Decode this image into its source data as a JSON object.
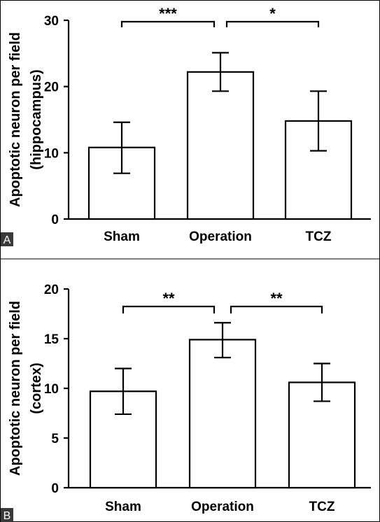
{
  "panels": [
    {
      "letter": "A",
      "chart_data": {
        "type": "bar",
        "ylabel_lines": [
          "Apoptotic neuron per field",
          "(hippocampus)"
        ],
        "categories": [
          "Sham",
          "Operation",
          "TCZ"
        ],
        "values": [
          10.8,
          22.2,
          14.8
        ],
        "error_low": [
          6.9,
          19.3,
          10.3
        ],
        "error_high": [
          14.6,
          25.1,
          19.3
        ],
        "ylim": [
          0,
          30
        ],
        "yticks": [
          0,
          10,
          20,
          30
        ],
        "significance": [
          {
            "from": 0,
            "to": 1,
            "label": "***"
          },
          {
            "from": 1,
            "to": 2,
            "label": "*"
          }
        ]
      }
    },
    {
      "letter": "B",
      "chart_data": {
        "type": "bar",
        "ylabel_lines": [
          "Apoptotic neuron per field",
          "(cortex)"
        ],
        "categories": [
          "Sham",
          "Operation",
          "TCZ"
        ],
        "values": [
          9.7,
          14.9,
          10.6
        ],
        "error_low": [
          7.4,
          13.1,
          8.7
        ],
        "error_high": [
          12.0,
          16.6,
          12.5
        ],
        "ylim": [
          0,
          20
        ],
        "yticks": [
          0,
          5,
          10,
          15,
          20
        ],
        "significance": [
          {
            "from": 0,
            "to": 1,
            "label": "**"
          },
          {
            "from": 1,
            "to": 2,
            "label": "**"
          }
        ]
      }
    }
  ]
}
